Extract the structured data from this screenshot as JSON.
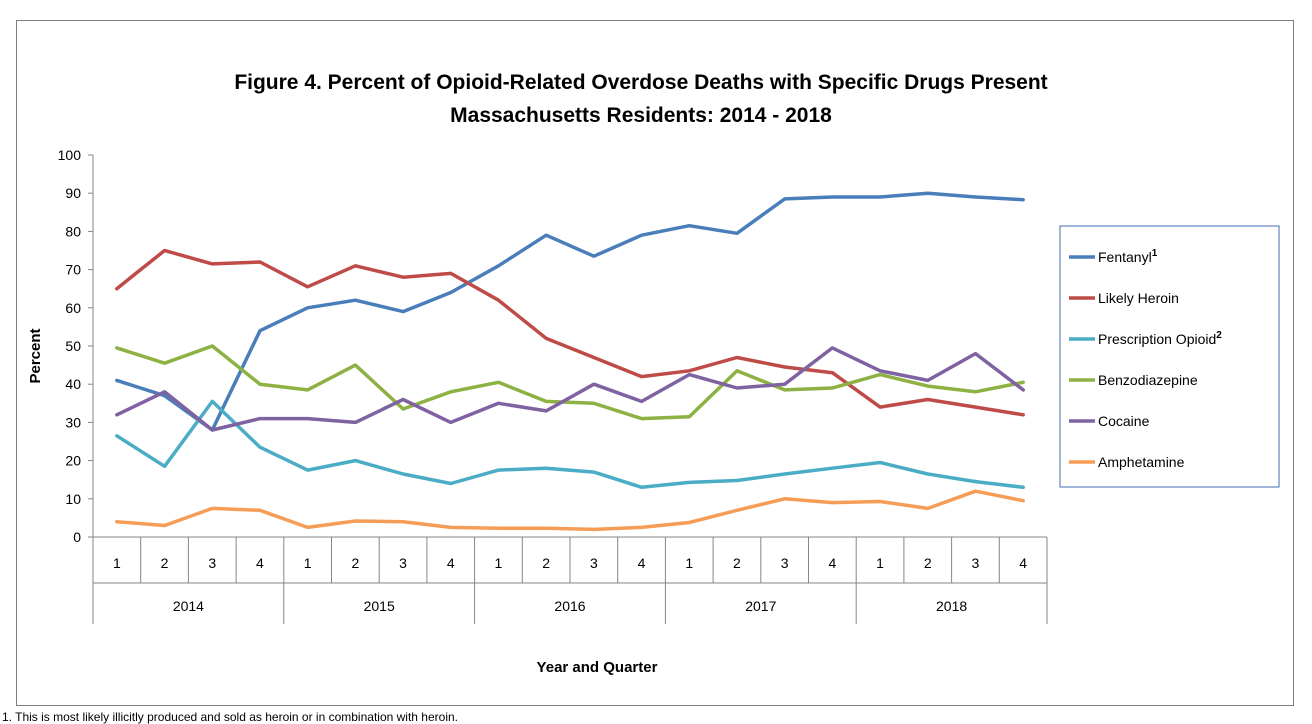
{
  "chart_data": {
    "type": "line",
    "title": "Figure 4. Percent of Opioid-Related Overdose Deaths with Specific Drugs Present",
    "subtitle": "Massachusetts Residents: 2014 - 2018",
    "xlabel": "Year and Quarter",
    "ylabel": "Percent",
    "ylim": [
      0,
      100
    ],
    "yticks": [
      0,
      10,
      20,
      30,
      40,
      50,
      60,
      70,
      80,
      90,
      100
    ],
    "quarters": [
      "1",
      "2",
      "3",
      "4",
      "1",
      "2",
      "3",
      "4",
      "1",
      "2",
      "3",
      "4",
      "1",
      "2",
      "3",
      "4",
      "1",
      "2",
      "3",
      "4"
    ],
    "years": [
      "2014",
      "2015",
      "2016",
      "2017",
      "2018"
    ],
    "legend_position": "right",
    "series": [
      {
        "name": "Fentanyl",
        "sup": "1",
        "color": "#4a7ebb",
        "values": [
          41,
          37,
          28,
          54,
          60,
          62,
          59,
          64,
          71,
          79,
          73.5,
          79,
          81.5,
          79.5,
          88.5,
          89,
          89,
          90,
          89,
          88.3
        ]
      },
      {
        "name": "Likely Heroin",
        "sup": "",
        "color": "#be4b48",
        "values": [
          65,
          75,
          71.5,
          72,
          65.5,
          71,
          68,
          69,
          62,
          52,
          47,
          42,
          43.5,
          47,
          44.5,
          43,
          34,
          36,
          34,
          32
        ]
      },
      {
        "name": "Prescription Opioid",
        "sup": "2",
        "color": "#4bacc6",
        "values": [
          26.5,
          18.5,
          35.5,
          23.5,
          17.5,
          20,
          16.5,
          14,
          17.5,
          18,
          17,
          13,
          14.3,
          14.8,
          16.5,
          18,
          19.5,
          16.5,
          14.5,
          13
        ]
      },
      {
        "name": "Benzodiazepine",
        "sup": "",
        "color": "#8db142",
        "values": [
          49.5,
          45.5,
          50,
          40,
          38.5,
          45,
          33.5,
          38,
          40.5,
          35.5,
          35,
          31,
          31.5,
          43.5,
          38.5,
          39,
          42.5,
          39.5,
          38,
          40.5
        ]
      },
      {
        "name": "Cocaine",
        "sup": "",
        "color": "#7f62a1",
        "values": [
          32,
          38,
          28,
          31,
          31,
          30,
          36,
          30,
          35,
          33,
          40,
          35.5,
          42.5,
          39,
          40,
          49.5,
          43.5,
          41,
          48,
          38.5
        ]
      },
      {
        "name": "Amphetamine",
        "sup": "",
        "color": "#f59d56",
        "values": [
          4,
          3,
          7.5,
          7,
          2.5,
          4.2,
          4,
          2.5,
          2.3,
          2.3,
          2,
          2.5,
          3.8,
          7,
          10,
          9,
          9.3,
          7.5,
          12,
          9.5
        ]
      }
    ]
  },
  "footnote": "1. This is most likely illicitly produced and sold as heroin or in combination with heroin."
}
